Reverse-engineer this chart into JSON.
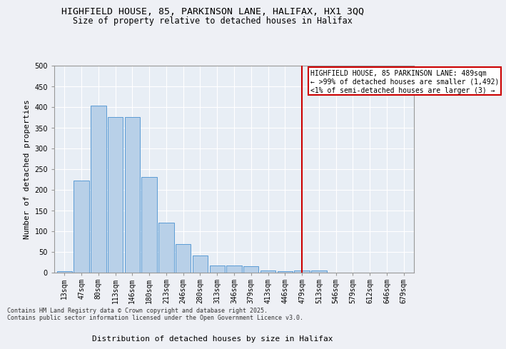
{
  "title1": "HIGHFIELD HOUSE, 85, PARKINSON LANE, HALIFAX, HX1 3QQ",
  "title2": "Size of property relative to detached houses in Halifax",
  "xlabel": "Distribution of detached houses by size in Halifax",
  "ylabel": "Number of detached properties",
  "bar_color": "#b8d0e8",
  "bar_edge_color": "#5b9bd5",
  "background_color": "#e8eef5",
  "grid_color": "#ffffff",
  "fig_color": "#eef0f5",
  "categories": [
    "13sqm",
    "47sqm",
    "80sqm",
    "113sqm",
    "146sqm",
    "180sqm",
    "213sqm",
    "246sqm",
    "280sqm",
    "313sqm",
    "346sqm",
    "379sqm",
    "413sqm",
    "446sqm",
    "479sqm",
    "513sqm",
    "546sqm",
    "579sqm",
    "612sqm",
    "646sqm",
    "679sqm"
  ],
  "values": [
    2,
    222,
    403,
    375,
    375,
    230,
    119,
    68,
    40,
    17,
    17,
    14,
    5,
    3,
    5,
    5,
    0,
    0,
    0,
    0,
    0
  ],
  "ylim": [
    0,
    500
  ],
  "yticks": [
    0,
    50,
    100,
    150,
    200,
    250,
    300,
    350,
    400,
    450,
    500
  ],
  "vline_x": 14,
  "vline_color": "#cc0000",
  "annotation_text": "HIGHFIELD HOUSE, 85 PARKINSON LANE: 489sqm\n← >99% of detached houses are smaller (1,492)\n<1% of semi-detached houses are larger (3) →",
  "annotation_box_color": "#ffffff",
  "annotation_box_edge": "#cc0000",
  "footer": "Contains HM Land Registry data © Crown copyright and database right 2025.\nContains public sector information licensed under the Open Government Licence v3.0.",
  "title1_fontsize": 9.5,
  "title2_fontsize": 8.5,
  "axis_label_fontsize": 8,
  "tick_fontsize": 7,
  "annotation_fontsize": 7
}
